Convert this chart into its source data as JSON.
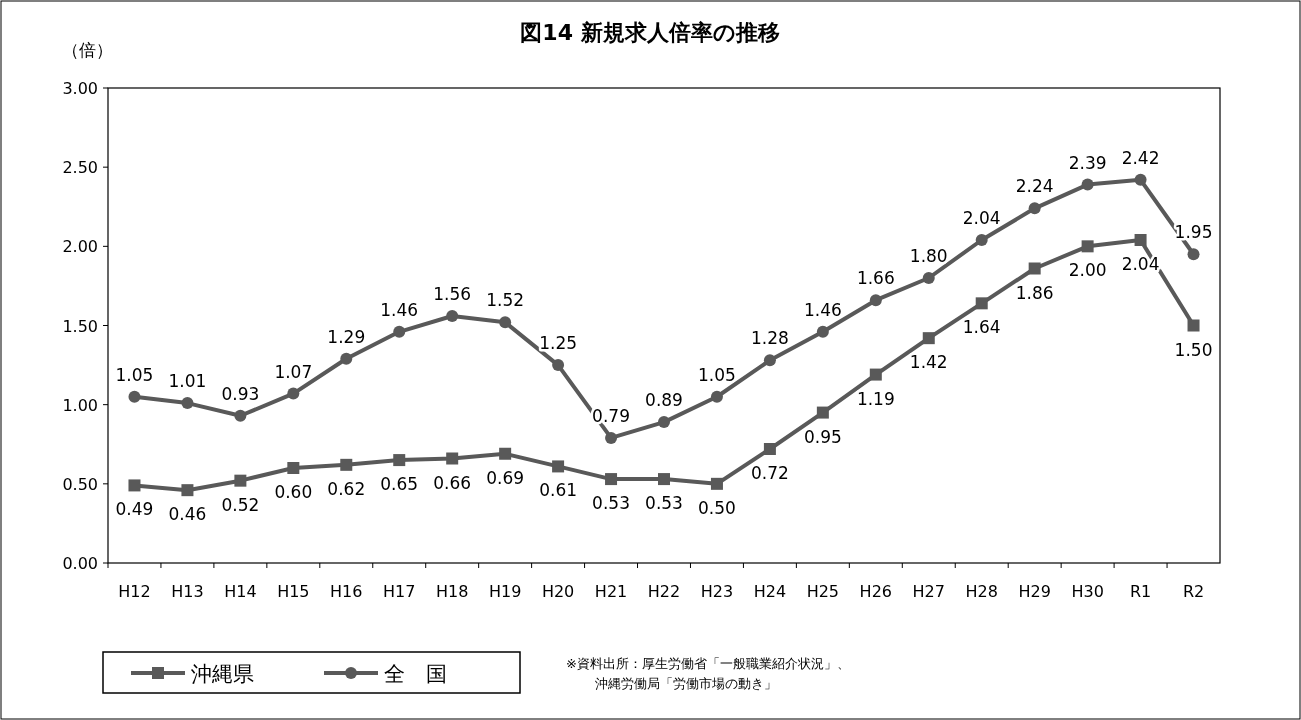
{
  "chart_data": {
    "type": "line",
    "title": "図14 新規求人倍率の推移",
    "ylabel": "（倍）",
    "categories": [
      "H12",
      "H13",
      "H14",
      "H15",
      "H16",
      "H17",
      "H18",
      "H19",
      "H20",
      "H21",
      "H22",
      "H23",
      "H24",
      "H25",
      "H26",
      "H27",
      "H28",
      "H29",
      "H30",
      "R1",
      "R2"
    ],
    "series": [
      {
        "name": "沖縄県",
        "color": "#595959",
        "marker": "square",
        "values": [
          0.49,
          0.46,
          0.52,
          0.6,
          0.62,
          0.65,
          0.66,
          0.69,
          0.61,
          0.53,
          0.53,
          0.5,
          0.72,
          0.95,
          1.19,
          1.42,
          1.64,
          1.86,
          2.0,
          2.04,
          1.5
        ],
        "value_labels": [
          "0.49",
          "0.46",
          "0.52",
          "0.60",
          "0.62",
          "0.65",
          "0.66",
          "0.69",
          "0.61",
          "0.53",
          "0.53",
          "0.50",
          "0.72",
          "0.95",
          "1.19",
          "1.42",
          "1.64",
          "1.86",
          "2.00",
          "2.04",
          "1.50"
        ]
      },
      {
        "name": "全　国",
        "color": "#595959",
        "marker": "circle",
        "values": [
          1.05,
          1.01,
          0.93,
          1.07,
          1.29,
          1.46,
          1.56,
          1.52,
          1.25,
          0.79,
          0.89,
          1.05,
          1.28,
          1.46,
          1.66,
          1.8,
          2.04,
          2.24,
          2.39,
          2.42,
          1.95
        ],
        "value_labels": [
          "1.05",
          "1.01",
          "0.93",
          "1.07",
          "1.29",
          "1.46",
          "1.56",
          "1.52",
          "1.25",
          "0.79",
          "0.89",
          "1.05",
          "1.28",
          "1.46",
          "1.66",
          "1.80",
          "2.04",
          "2.24",
          "2.39",
          "2.42",
          "1.95"
        ]
      }
    ],
    "ylim": [
      0,
      3
    ],
    "yticks": [
      {
        "value": 0,
        "label": "0.00"
      },
      {
        "value": 0.5,
        "label": "0.50"
      },
      {
        "value": 1,
        "label": "1.00"
      },
      {
        "value": 1.5,
        "label": "1.50"
      },
      {
        "value": 2,
        "label": "2.00"
      },
      {
        "value": 2.5,
        "label": "2.50"
      },
      {
        "value": 3,
        "label": "3.00"
      }
    ],
    "legend": "bottom left",
    "line_style": "solid",
    "grid": false,
    "annotations": [
      "※資料出所：厚生労働省「一般職業紹介状況」、",
      "沖縄労働局「労働市場の動き」"
    ]
  }
}
